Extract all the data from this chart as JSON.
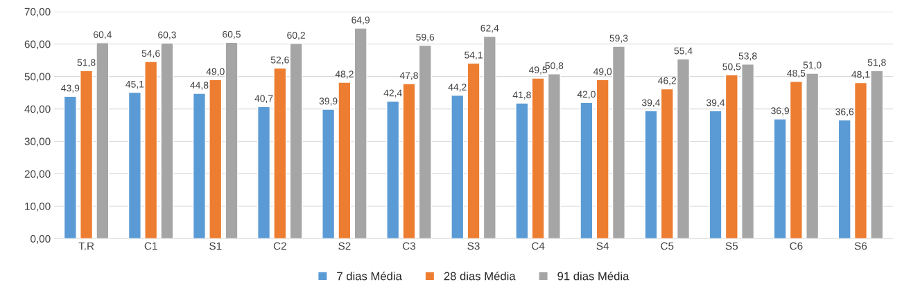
{
  "chart_data": {
    "type": "bar",
    "categories": [
      "T.R",
      "C1",
      "S1",
      "C2",
      "S2",
      "C3",
      "S3",
      "C4",
      "S4",
      "C5",
      "S5",
      "C6",
      "S6"
    ],
    "series": [
      {
        "name": "7 dias Média",
        "color": "#5b9bd5",
        "values": [
          43.9,
          45.1,
          44.8,
          40.7,
          39.9,
          42.4,
          44.2,
          41.8,
          42.0,
          39.4,
          39.4,
          36.9,
          36.6
        ],
        "value_labels": [
          "43,9",
          "45,1",
          "44,8",
          "40,7",
          "39,9",
          "42,4",
          "44,2",
          "41,8",
          "42,0",
          "39,4",
          "39,4",
          "36,9",
          "36,6"
        ]
      },
      {
        "name": "28 dias Média",
        "color": "#ed7d31",
        "values": [
          51.8,
          54.6,
          49.0,
          52.6,
          48.2,
          47.8,
          54.1,
          49.5,
          49.0,
          46.2,
          50.5,
          48.5,
          48.1
        ],
        "value_labels": [
          "51,8",
          "54,6",
          "49,0",
          "52,6",
          "48,2",
          "47,8",
          "54,1",
          "49,5",
          "49,0",
          "46,2",
          "50,5",
          "48,5",
          "48,1"
        ]
      },
      {
        "name": "91 dias Média",
        "color": "#a5a5a5",
        "values": [
          60.4,
          60.3,
          60.5,
          60.2,
          64.9,
          59.6,
          62.4,
          50.8,
          59.3,
          55.4,
          53.8,
          51.0,
          51.8
        ],
        "value_labels": [
          "60,4",
          "60,3",
          "60,5",
          "60,2",
          "64,9",
          "59,6",
          "62,4",
          "50,8",
          "59,3",
          "55,4",
          "53,8",
          "51,0",
          "51,8"
        ]
      }
    ],
    "ylim": [
      0,
      70
    ],
    "yticks": [
      {
        "value": 0,
        "label": "0,00"
      },
      {
        "value": 10,
        "label": "10,00"
      },
      {
        "value": 20,
        "label": "20,00"
      },
      {
        "value": 30,
        "label": "30,00"
      },
      {
        "value": 40,
        "label": "40,00"
      },
      {
        "value": 50,
        "label": "50,00"
      },
      {
        "value": 60,
        "label": "60,00"
      },
      {
        "value": 70,
        "label": "70,00"
      }
    ],
    "grid": "y",
    "legend": "bottom"
  }
}
